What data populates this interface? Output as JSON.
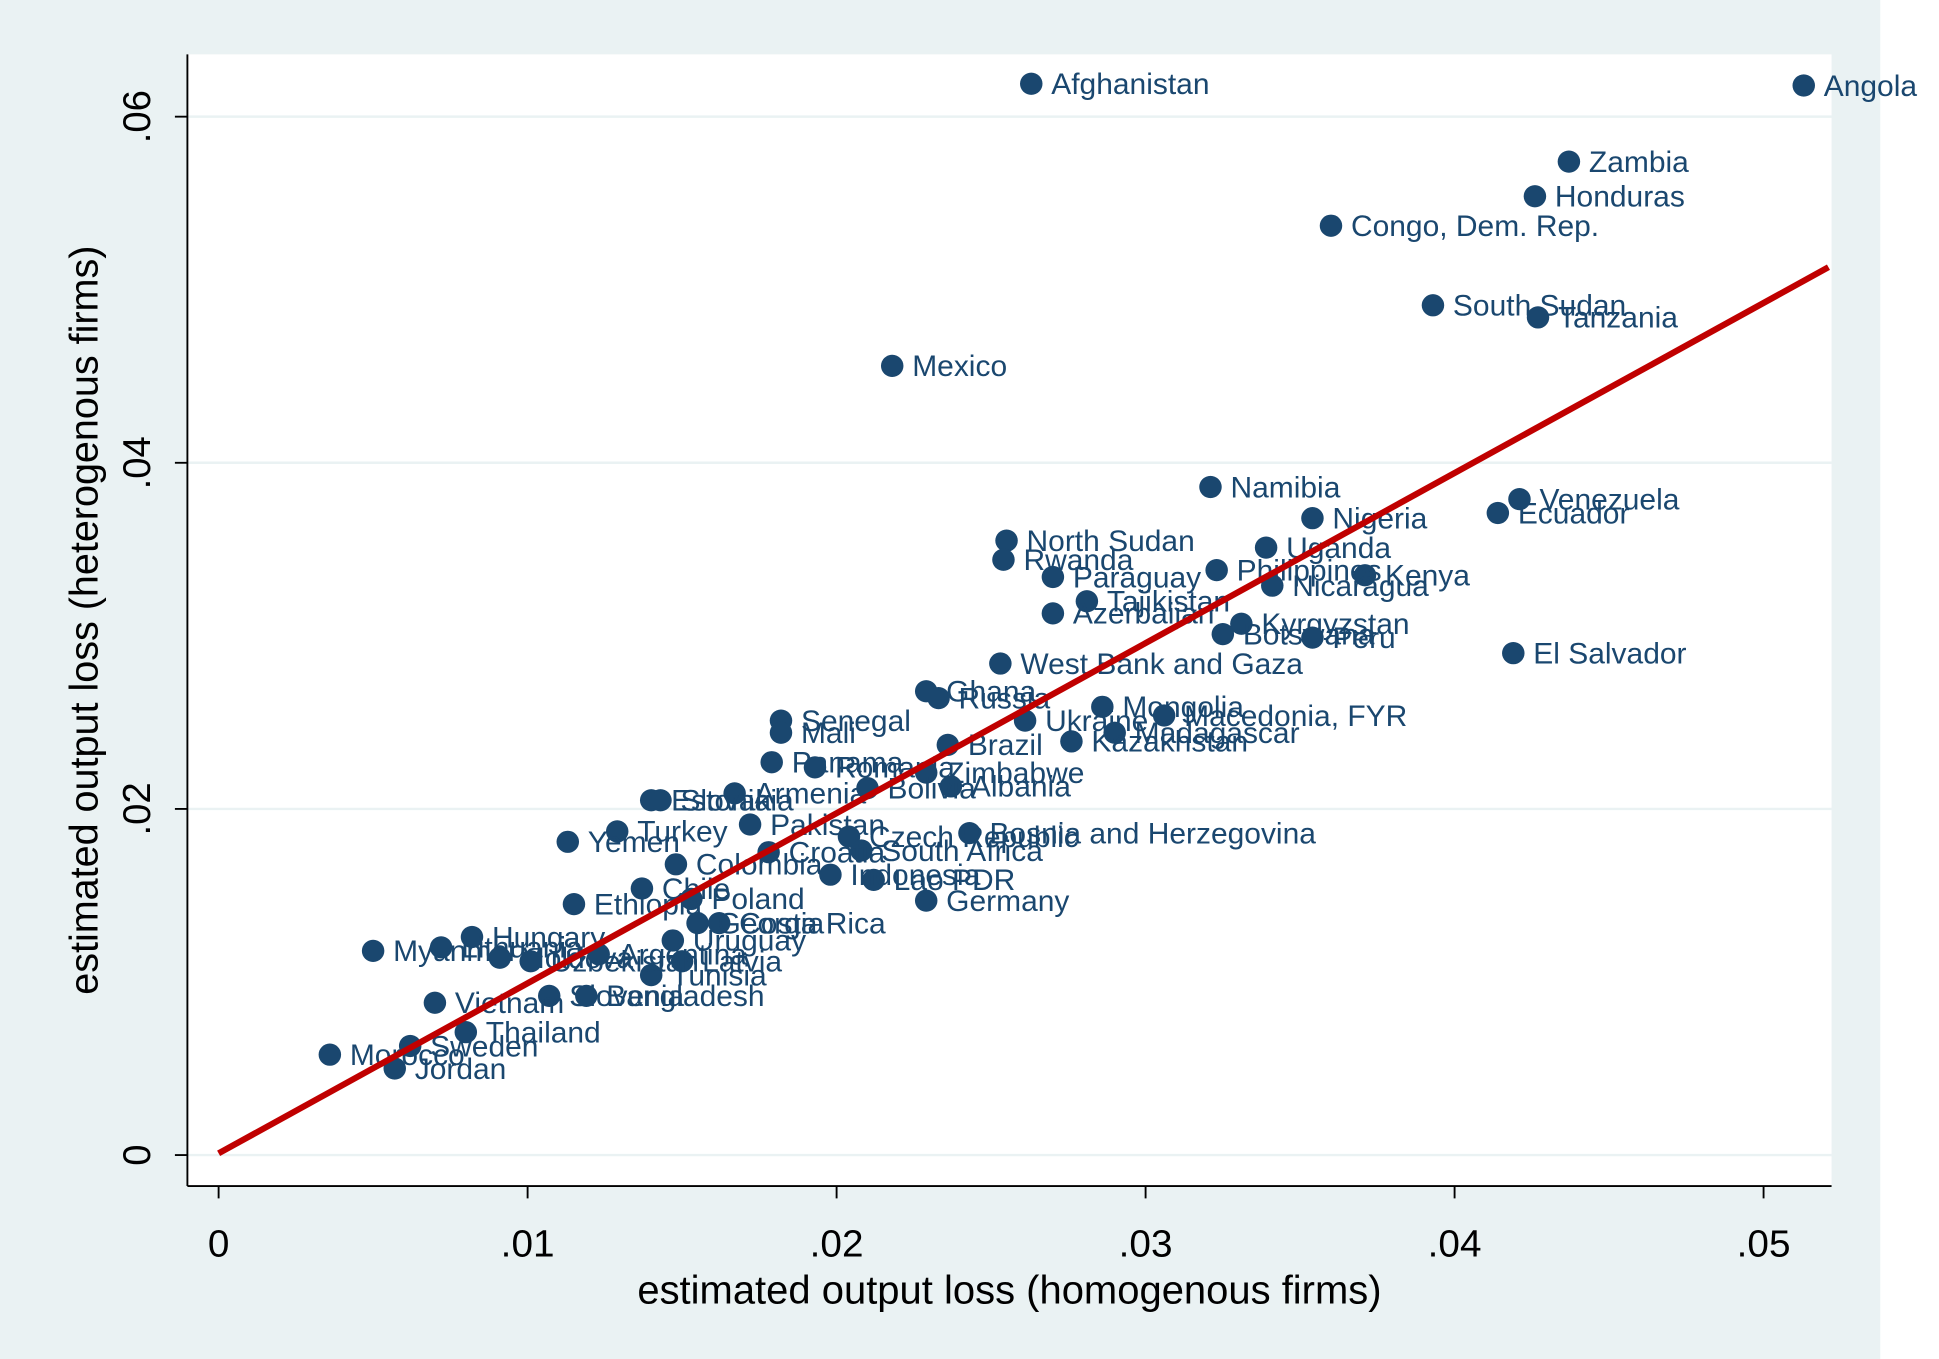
{
  "chart_data": {
    "type": "scatter",
    "x_label": "estimated output loss (homogenous firms)",
    "y_label": "estimated output loss (heterogenous firms)",
    "xlim": [
      -0.00101,
      0.0522
    ],
    "ylim": [
      -0.00179,
      0.0636
    ],
    "xticks": [
      0,
      {
        "value": 0.01,
        "label": ".01"
      },
      {
        "value": 0.02,
        "label": ".02"
      },
      {
        "value": 0.03,
        "label": ".03"
      },
      {
        "value": 0.04,
        "label": ".04"
      },
      {
        "value": 0.05,
        "label": ".05"
      }
    ],
    "yticks": [
      0,
      {
        "value": 0.02,
        "label": ".02"
      },
      {
        "value": 0.04,
        "label": ".04"
      },
      {
        "value": 0.06,
        "label": ".06"
      }
    ],
    "grid": true,
    "color": "#1a476f",
    "labels": [
      "Afghanistan",
      "Angola",
      "Zambia",
      "Honduras",
      "Congo, Dem. Rep.",
      "South Sudan",
      "Tanzania",
      "Mexico",
      "Namibia",
      "Venezuela",
      "Ecuador",
      "Nigeria",
      "North Sudan",
      "Uganda",
      "Rwanda",
      "Paraguay",
      "Kenya",
      "Nicaragua",
      "Philippines",
      "Tajikistan",
      "Azerbaijan",
      "Kyrgyzstan",
      "Botswana",
      "Peru",
      "El Salvador",
      "West Bank and Gaza",
      "Ghana",
      "Russia",
      "Mongolia",
      "Macedonia, FYR",
      "Ukraine",
      "Madagascar",
      "Senegal",
      "Mali",
      "Brazil",
      "Kazakhstan",
      "Panama",
      "Romania",
      "Zimbabwe",
      "Albania",
      "Armenia",
      "Bolivia",
      "Estonia",
      "Slovakia",
      "Turkey",
      "Yemen",
      "Pakistan",
      "Bosnia and Herzegovina",
      "Czech Republic",
      "South Africa",
      "Colombia",
      "Croatia",
      "Lao PDR",
      "Indonesia",
      "Germany",
      "Chile",
      "Poland",
      "Ethiopia",
      "Costa Rica",
      "Georgia",
      "Hungary",
      "Uruguay",
      "Myanmar",
      "Lithuania",
      "Latvia",
      "Tunisia",
      "Slovenia",
      "Bangladesh",
      "Vietnam",
      "Thailand",
      "Sweden",
      "Morocco",
      "Jordan",
      "Moldova",
      "Uzbekistan",
      "Argentina"
    ],
    "x": [
      0.0263,
      0.0513,
      0.0437,
      0.0426,
      0.036,
      0.0393,
      0.0427,
      0.0218,
      0.0321,
      0.0421,
      0.0414,
      0.0354,
      0.0255,
      0.0339,
      0.0254,
      0.027,
      0.0371,
      0.0341,
      0.0323,
      0.0281,
      0.027,
      0.0331,
      0.0325,
      0.0354,
      0.0419,
      0.0253,
      0.0229,
      0.0233,
      0.0286,
      0.0306,
      0.0261,
      0.029,
      0.0182,
      0.0182,
      0.0236,
      0.0276,
      0.0179,
      0.0193,
      0.0229,
      0.0237,
      0.0167,
      0.021,
      0.014,
      0.0143,
      0.0129,
      0.0113,
      0.0172,
      0.0243,
      0.0204,
      0.0208,
      0.0148,
      0.0178,
      0.0212,
      0.0198,
      0.0229,
      0.0137,
      0.0153,
      0.0115,
      0.0162,
      0.0155,
      0.0082,
      0.0147,
      0.005,
      0.0072,
      0.015,
      0.014,
      0.0107,
      0.0119,
      0.007,
      0.008,
      0.0062,
      0.0036,
      0.0057,
      0.0091,
      0.0101,
      0.0123
    ],
    "y": [
      0.0619,
      0.0618,
      0.0574,
      0.0554,
      0.0537,
      0.0491,
      0.0484,
      0.0456,
      0.0386,
      0.0379,
      0.0371,
      0.0368,
      0.0355,
      0.0351,
      0.0344,
      0.0334,
      0.0335,
      0.0329,
      0.0338,
      0.032,
      0.0313,
      0.0307,
      0.0301,
      0.0299,
      0.029,
      0.0284,
      0.0268,
      0.0264,
      0.0259,
      0.0254,
      0.0251,
      0.0244,
      0.0251,
      0.0244,
      0.0237,
      0.0239,
      0.0227,
      0.0224,
      0.0221,
      0.0213,
      0.0209,
      0.0212,
      0.0205,
      0.0205,
      0.0187,
      0.0181,
      0.0191,
      0.0186,
      0.0184,
      0.0176,
      0.0168,
      0.0175,
      0.0159,
      0.0162,
      0.0147,
      0.0154,
      0.0148,
      0.0145,
      0.0134,
      0.0134,
      0.0126,
      0.0124,
      0.0118,
      0.012,
      0.0112,
      0.0104,
      0.0092,
      0.0092,
      0.0088,
      0.0071,
      0.0063,
      0.0058,
      0.005,
      0.0114,
      0.0112,
      0.0116
    ],
    "fit_line": {
      "x": [
        0,
        0.0521
      ],
      "y": [
        0.0001,
        0.0513
      ],
      "color": "#c00000"
    }
  }
}
